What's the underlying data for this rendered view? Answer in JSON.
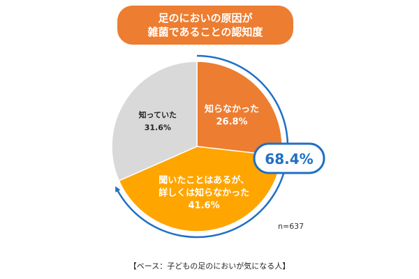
{
  "title": {
    "line1": "足のにおいの原因が",
    "line2": "雑菌であることの認知度"
  },
  "chart_data": {
    "type": "pie",
    "slices": [
      {
        "label_lines": [
          "知らなかった"
        ],
        "value_label": "26.8%",
        "value": 26.8,
        "color": "#ed7d31",
        "text_color": "#ffffff"
      },
      {
        "label_lines": [
          "聞いたことはあるが、",
          "詳しくは知らなかった"
        ],
        "value_label": "41.6%",
        "value": 41.6,
        "color": "#ffa500",
        "text_color": "#ffffff"
      },
      {
        "label_lines": [
          "知っていた"
        ],
        "value_label": "31.6%",
        "value": 31.6,
        "color": "#d9d9d9",
        "text_color": "#222222"
      }
    ],
    "highlight": {
      "value_label": "68.4%",
      "value": 68.4,
      "color": "#1f6fc5"
    }
  },
  "sample_size": "n=637",
  "base_note": "【ベース：子どもの足のにおいが気になる人】"
}
